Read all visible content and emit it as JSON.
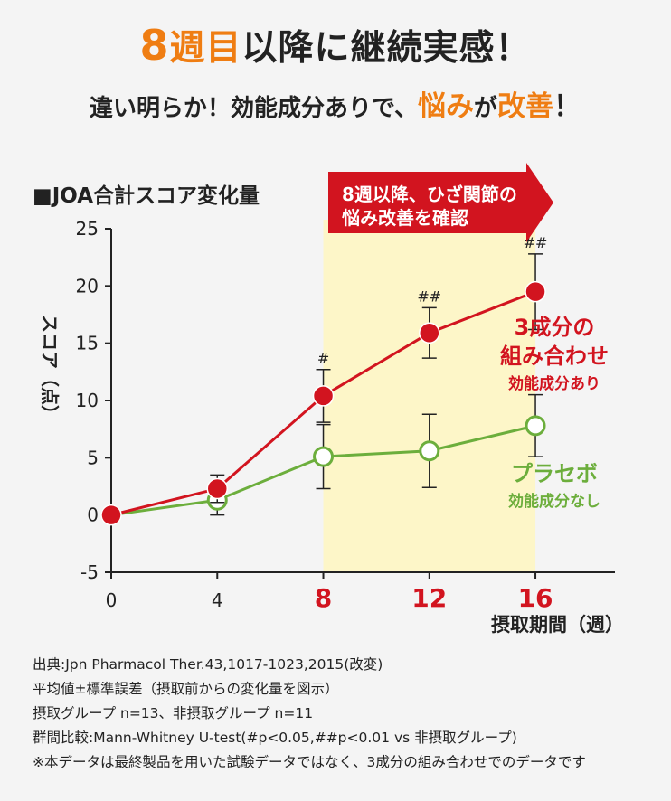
{
  "headline": {
    "line1_a": "8",
    "line1_b": "週目",
    "line1_c": "以降に継続実感！",
    "line2_a": "違い明らか！効能成分ありで、",
    "line2_b": "悩み",
    "line2_c": "が",
    "line2_d": "改善",
    "line2_e": "！"
  },
  "chart_data": {
    "type": "line",
    "title": "■JOA合計スコア変化量",
    "xlabel": "摂取期間（週）",
    "ylabel": "スコア（点）",
    "x": [
      0,
      4,
      8,
      12,
      16
    ],
    "x_tick_labels": [
      "0",
      "4",
      "8",
      "12",
      "16"
    ],
    "xlim": [
      0,
      19
    ],
    "ylim": [
      -5,
      25
    ],
    "y_ticks": [
      "-5",
      "0",
      "5",
      "10",
      "15",
      "20",
      "25"
    ],
    "highlight_from_week": 8,
    "highlight_color": "#fdf6c8",
    "arrow_label": [
      "8週以降、ひざ関節の",
      "悩み改善を確認"
    ],
    "series": [
      {
        "name": "3成分の組み合わせ 効能成分あり",
        "label_lines": [
          "3成分の",
          "組み合わせ"
        ],
        "sublabel": "効能成分あり",
        "color": "#d2141f",
        "marker": "filled",
        "values": [
          0,
          2.3,
          10.4,
          15.9,
          19.5
        ],
        "error": [
          0,
          1.2,
          2.3,
          2.2,
          3.3
        ],
        "significance": [
          "",
          "",
          "#",
          "##",
          "##"
        ]
      },
      {
        "name": "プラセボ 効能成分なし",
        "label_lines": [
          "プラセボ"
        ],
        "sublabel": "効能成分なし",
        "color": "#6cae3c",
        "marker": "open",
        "values": [
          0,
          1.3,
          5.1,
          5.6,
          7.8
        ],
        "error": [
          0,
          1.3,
          2.8,
          3.2,
          2.7
        ],
        "significance": [
          "",
          "",
          "",
          "",
          ""
        ]
      }
    ]
  },
  "notes": [
    "出典:Jpn Pharmacol Ther.43,1017-1023,2015(改変)",
    "平均値±標準誤差（摂取前からの変化量を図示）",
    "摂取グループ n=13、非摂取グループ n=11",
    "群間比較:Mann-Whitney U-test(#p<0.05,##p<0.01 vs 非摂取グループ)",
    "※本データは最終製品を用いた試験データではなく、3成分の組み合わせでのデータです"
  ]
}
